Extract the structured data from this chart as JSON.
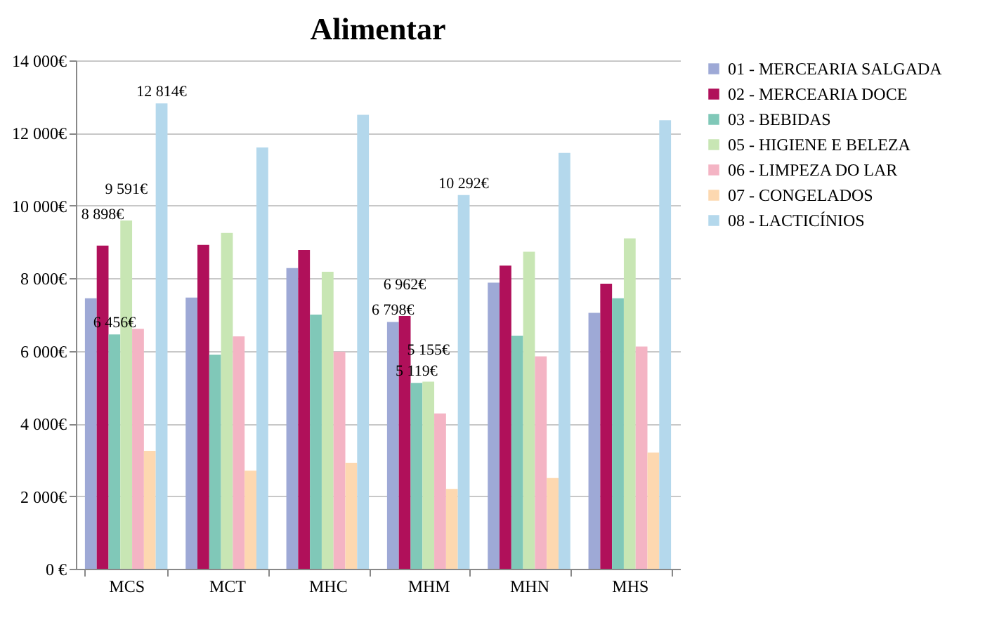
{
  "chart_data": {
    "type": "bar",
    "title": "Alimentar",
    "categories": [
      "MCS",
      "MCT",
      "MHC",
      "MHM",
      "MHN",
      "MHS"
    ],
    "series": [
      {
        "name": "01 - MERCEARIA SALGADA",
        "color": "#9ea9d6",
        "values": [
          7450,
          7470,
          8280,
          6798,
          7880,
          7050
        ],
        "value_labels": [
          null,
          null,
          null,
          "6 798€",
          null,
          null
        ]
      },
      {
        "name": "02 - MERCEARIA DOCE",
        "color": "#b0105a",
        "values": [
          8898,
          8920,
          8780,
          6962,
          8350,
          7850
        ],
        "value_labels": [
          "8 898€",
          null,
          null,
          "6 962€",
          null,
          null
        ]
      },
      {
        "name": "03 - BEBIDAS",
        "color": "#80c8b8",
        "values": [
          6456,
          5900,
          7000,
          5119,
          6420,
          7450
        ],
        "value_labels": [
          "6 456€",
          null,
          null,
          "5 119€",
          null,
          null
        ]
      },
      {
        "name": "05 - HIGIENE E BELEZA",
        "color": "#c8e6b4",
        "values": [
          9591,
          9250,
          8180,
          5155,
          8730,
          9100
        ],
        "value_labels": [
          "9 591€",
          null,
          null,
          "5 155€",
          null,
          null
        ]
      },
      {
        "name": "06 - LIMPEZA DO LAR",
        "color": "#f4b4c4",
        "values": [
          6610,
          6400,
          5980,
          4280,
          5850,
          6120
        ]
      },
      {
        "name": "07 - CONGELADOS",
        "color": "#fdd8b0",
        "values": [
          3250,
          2700,
          2920,
          2200,
          2500,
          3200
        ]
      },
      {
        "name": "08 - LACTICÍNIOS",
        "color": "#b4d8ec",
        "values": [
          12814,
          11600,
          12500,
          10292,
          11450,
          12350
        ],
        "value_labels": [
          "12 814€",
          null,
          null,
          "10 292€",
          null,
          null
        ]
      }
    ],
    "ylim": [
      0,
      14000
    ],
    "yticks": [
      {
        "value": 0,
        "label": "0 €"
      },
      {
        "value": 2000,
        "label": "2 000€"
      },
      {
        "value": 4000,
        "label": "4 000€"
      },
      {
        "value": 6000,
        "label": "6 000€"
      },
      {
        "value": 8000,
        "label": "8 000€"
      },
      {
        "value": 10000,
        "label": "10 000€"
      },
      {
        "value": 12000,
        "label": "12 000€"
      },
      {
        "value": 14000,
        "label": "14 000€"
      }
    ],
    "grid": "y",
    "legend": "right"
  }
}
